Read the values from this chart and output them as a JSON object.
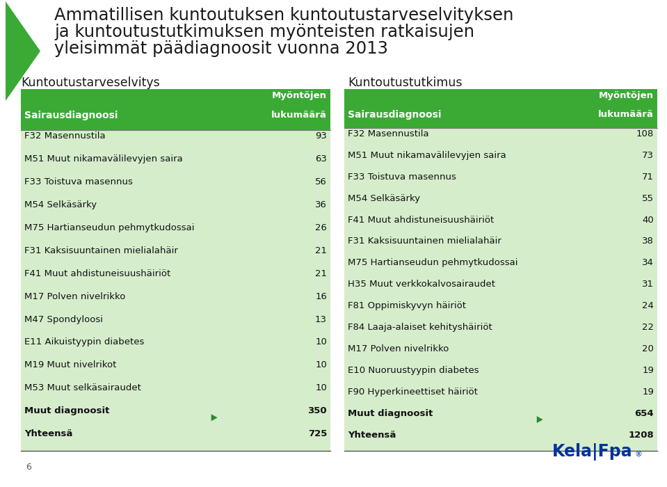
{
  "title_line1": "Ammatillisen kuntoutuksen kuntoutustarveselvityksen",
  "title_line2": "ja kuntoutustutkimuksen myönteisten ratkaisujen",
  "title_line3": "yleisimmät päädiagnoosit vuonna 2013",
  "bg_color": "#ffffff",
  "header_bg": "#3aaa35",
  "table_bg": "#d6edcc",
  "left_section_title": "Kuntoutustarveselvitys",
  "right_section_title": "Kuntoutustutkimus",
  "col_header1": "Myöntöjen",
  "col_header2": "lukumäärä",
  "col_header_diag": "Sairausdiagnoosi",
  "left_rows": [
    [
      "F32 Masennustila",
      "93"
    ],
    [
      "M51 Muut nikamavälilevyjen saira",
      "63"
    ],
    [
      "F33 Toistuva masennus",
      "56"
    ],
    [
      "M54 Selkäsärky",
      "36"
    ],
    [
      "M75 Hartianseudun pehmytkudossai",
      "26"
    ],
    [
      "F31 Kaksisuuntainen mielialahäir",
      "21"
    ],
    [
      "F41 Muut ahdistuneisuushäiriöt",
      "21"
    ],
    [
      "M17 Polven nivelrikko",
      "16"
    ],
    [
      "M47 Spondyloosi",
      "13"
    ],
    [
      "E11 Aikuistyypin diabetes",
      "10"
    ],
    [
      "M19 Muut nivelrikot",
      "10"
    ],
    [
      "M53 Muut selkäsairaudet",
      "10"
    ],
    [
      "Muut diagnoosit",
      "350"
    ],
    [
      "Yhteensä",
      "725"
    ]
  ],
  "right_rows": [
    [
      "F32 Masennustila",
      "108"
    ],
    [
      "M51 Muut nikamavälilevyjen saira",
      "73"
    ],
    [
      "F33 Toistuva masennus",
      "71"
    ],
    [
      "M54 Selkäsärky",
      "55"
    ],
    [
      "F41 Muut ahdistuneisuushäiriöt",
      "40"
    ],
    [
      "F31 Kaksisuuntainen mielialahäir",
      "38"
    ],
    [
      "M75 Hartianseudun pehmytkudossai",
      "34"
    ],
    [
      "H35 Muut verkkokalvosairaudet",
      "31"
    ],
    [
      "F81 Oppimiskyvyn häiriöt",
      "24"
    ],
    [
      "F84 Laaja-alaiset kehityshäiriöt",
      "22"
    ],
    [
      "M17 Polven nivelrikko",
      "20"
    ],
    [
      "E10 Nuoruustyypin diabetes",
      "19"
    ],
    [
      "F90 Hyperkineettiset häiriöt",
      "19"
    ],
    [
      "Muut diagnoosit",
      "654"
    ],
    [
      "Yhteensä",
      "1208"
    ]
  ],
  "page_number": "6",
  "title_fontsize": 17.5,
  "section_title_fontsize": 12.5,
  "header_fontsize": 9.5,
  "table_fontsize": 9.5,
  "kela_blue": "#003399"
}
